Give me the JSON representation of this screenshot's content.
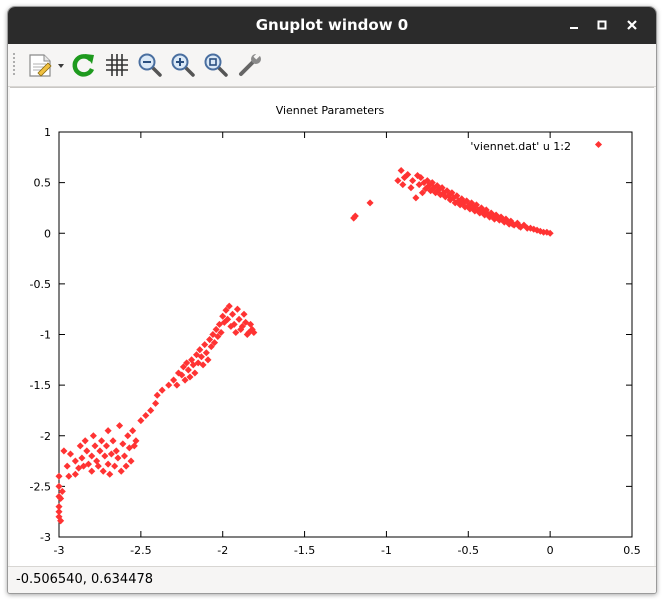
{
  "window": {
    "title": "Gnuplot window 0"
  },
  "toolbar": {
    "items": [
      {
        "name": "copy-to-clipboard",
        "icon": "clipboard-icon"
      },
      {
        "name": "replot",
        "icon": "refresh-icon"
      },
      {
        "name": "grid",
        "icon": "grid-icon"
      },
      {
        "name": "zoom-previous",
        "icon": "zoom-out-icon"
      },
      {
        "name": "zoom-next",
        "icon": "zoom-in-icon"
      },
      {
        "name": "autoscale",
        "icon": "zoom-fit-icon"
      },
      {
        "name": "options",
        "icon": "wrench-icon"
      }
    ]
  },
  "status": {
    "coordinates": "-0.506540,  0.634478"
  },
  "colors": {
    "series": "#ff3333",
    "titlebar": "#2b2b2b"
  },
  "chart_data": {
    "type": "scatter",
    "title": "Viennet Parameters",
    "xlabel": "",
    "ylabel": "",
    "xlim": [
      -3,
      0.5
    ],
    "ylim": [
      -3,
      1
    ],
    "xticks": [
      "-3",
      "-2.5",
      "-2",
      "-1.5",
      "-1",
      "-0.5",
      "0",
      "0.5"
    ],
    "yticks": [
      "1",
      "0.5",
      "0",
      "-0.5",
      "-1",
      "-1.5",
      "-2",
      "-2.5",
      "-3"
    ],
    "grid": false,
    "legend": "top-right",
    "series": [
      {
        "name": "'viennet.dat' u 1:2",
        "marker": "diamond",
        "points": [
          [
            -3.0,
            -2.8
          ],
          [
            -3.0,
            -2.75
          ],
          [
            -3.0,
            -2.7
          ],
          [
            -3.0,
            -2.6
          ],
          [
            -3.0,
            -2.5
          ],
          [
            -3.0,
            -2.4
          ],
          [
            -2.99,
            -2.84
          ],
          [
            -2.99,
            -2.62
          ],
          [
            -2.98,
            -2.55
          ],
          [
            -2.97,
            -2.15
          ],
          [
            -2.95,
            -2.3
          ],
          [
            -2.94,
            -2.4
          ],
          [
            -2.93,
            -2.18
          ],
          [
            -2.9,
            -2.38
          ],
          [
            -2.9,
            -2.25
          ],
          [
            -2.88,
            -2.32
          ],
          [
            -2.87,
            -2.1
          ],
          [
            -2.86,
            -2.22
          ],
          [
            -2.85,
            -2.3
          ],
          [
            -2.84,
            -2.05
          ],
          [
            -2.83,
            -2.15
          ],
          [
            -2.82,
            -2.28
          ],
          [
            -2.8,
            -2.2
          ],
          [
            -2.8,
            -2.35
          ],
          [
            -2.79,
            -2.0
          ],
          [
            -2.78,
            -2.1
          ],
          [
            -2.77,
            -2.25
          ],
          [
            -2.76,
            -2.3
          ],
          [
            -2.75,
            -2.15
          ],
          [
            -2.74,
            -2.05
          ],
          [
            -2.73,
            -2.35
          ],
          [
            -2.72,
            -2.2
          ],
          [
            -2.71,
            -2.1
          ],
          [
            -2.7,
            -2.28
          ],
          [
            -2.7,
            -1.95
          ],
          [
            -2.69,
            -2.38
          ],
          [
            -2.68,
            -2.18
          ],
          [
            -2.67,
            -2.05
          ],
          [
            -2.66,
            -2.3
          ],
          [
            -2.65,
            -2.15
          ],
          [
            -2.64,
            -2.22
          ],
          [
            -2.63,
            -1.9
          ],
          [
            -2.62,
            -2.35
          ],
          [
            -2.61,
            -2.08
          ],
          [
            -2.6,
            -2.2
          ],
          [
            -2.59,
            -2.3
          ],
          [
            -2.58,
            -2.0
          ],
          [
            -2.57,
            -2.12
          ],
          [
            -2.56,
            -2.25
          ],
          [
            -2.55,
            -1.95
          ],
          [
            -2.54,
            -2.1
          ],
          [
            -2.53,
            -2.05
          ],
          [
            -2.5,
            -1.85
          ],
          [
            -2.47,
            -1.8
          ],
          [
            -2.44,
            -1.75
          ],
          [
            -2.41,
            -1.68
          ],
          [
            -2.4,
            -1.6
          ],
          [
            -2.37,
            -1.55
          ],
          [
            -2.33,
            -1.5
          ],
          [
            -2.3,
            -1.45
          ],
          [
            -2.28,
            -1.5
          ],
          [
            -2.27,
            -1.38
          ],
          [
            -2.25,
            -1.4
          ],
          [
            -2.24,
            -1.32
          ],
          [
            -2.23,
            -1.45
          ],
          [
            -2.22,
            -1.28
          ],
          [
            -2.21,
            -1.35
          ],
          [
            -2.2,
            -1.42
          ],
          [
            -2.19,
            -1.25
          ],
          [
            -2.18,
            -1.3
          ],
          [
            -2.17,
            -1.38
          ],
          [
            -2.16,
            -1.2
          ],
          [
            -2.15,
            -1.28
          ],
          [
            -2.14,
            -1.15
          ],
          [
            -2.13,
            -1.22
          ],
          [
            -2.12,
            -1.3
          ],
          [
            -2.11,
            -1.1
          ],
          [
            -2.1,
            -1.18
          ],
          [
            -2.09,
            -1.25
          ],
          [
            -2.08,
            -1.05
          ],
          [
            -2.07,
            -1.12
          ],
          [
            -2.06,
            -1.0
          ],
          [
            -2.05,
            -1.08
          ],
          [
            -2.04,
            -0.95
          ],
          [
            -2.03,
            -1.02
          ],
          [
            -2.02,
            -0.9
          ],
          [
            -2.01,
            -0.98
          ],
          [
            -2.0,
            -0.82
          ],
          [
            -1.99,
            -0.88
          ],
          [
            -1.98,
            -0.76
          ],
          [
            -1.97,
            -0.85
          ],
          [
            -1.96,
            -0.72
          ],
          [
            -1.95,
            -0.92
          ],
          [
            -1.94,
            -0.8
          ],
          [
            -1.93,
            -0.9
          ],
          [
            -1.92,
            -0.98
          ],
          [
            -1.91,
            -0.75
          ],
          [
            -1.9,
            -0.85
          ],
          [
            -1.89,
            -0.95
          ],
          [
            -1.88,
            -0.92
          ],
          [
            -1.87,
            -0.8
          ],
          [
            -1.86,
            -0.88
          ],
          [
            -1.85,
            -1.0
          ],
          [
            -1.84,
            -0.98
          ],
          [
            -1.83,
            -0.9
          ],
          [
            -1.82,
            -0.95
          ],
          [
            -1.81,
            -0.98
          ],
          [
            -1.2,
            0.15
          ],
          [
            -1.19,
            0.17
          ],
          [
            -1.1,
            0.3
          ],
          [
            -0.93,
            0.52
          ],
          [
            -0.91,
            0.62
          ],
          [
            -0.9,
            0.48
          ],
          [
            -0.89,
            0.55
          ],
          [
            -0.87,
            0.58
          ],
          [
            -0.85,
            0.45
          ],
          [
            -0.84,
            0.52
          ],
          [
            -0.82,
            0.35
          ],
          [
            -0.81,
            0.57
          ],
          [
            -0.8,
            0.48
          ],
          [
            -0.79,
            0.55
          ],
          [
            -0.78,
            0.4
          ],
          [
            -0.77,
            0.5
          ],
          [
            -0.76,
            0.44
          ],
          [
            -0.75,
            0.52
          ],
          [
            -0.74,
            0.47
          ],
          [
            -0.73,
            0.42
          ],
          [
            -0.72,
            0.5
          ],
          [
            -0.71,
            0.45
          ],
          [
            -0.7,
            0.4
          ],
          [
            -0.69,
            0.47
          ],
          [
            -0.68,
            0.43
          ],
          [
            -0.67,
            0.38
          ],
          [
            -0.66,
            0.45
          ],
          [
            -0.65,
            0.4
          ],
          [
            -0.64,
            0.36
          ],
          [
            -0.63,
            0.42
          ],
          [
            -0.62,
            0.37
          ],
          [
            -0.61,
            0.33
          ],
          [
            -0.6,
            0.4
          ],
          [
            -0.59,
            0.35
          ],
          [
            -0.58,
            0.3
          ],
          [
            -0.57,
            0.37
          ],
          [
            -0.56,
            0.32
          ],
          [
            -0.55,
            0.28
          ],
          [
            -0.54,
            0.34
          ],
          [
            -0.53,
            0.3
          ],
          [
            -0.52,
            0.26
          ],
          [
            -0.51,
            0.32
          ],
          [
            -0.5,
            0.27
          ],
          [
            -0.49,
            0.24
          ],
          [
            -0.48,
            0.3
          ],
          [
            -0.47,
            0.25
          ],
          [
            -0.46,
            0.22
          ],
          [
            -0.45,
            0.28
          ],
          [
            -0.44,
            0.23
          ],
          [
            -0.43,
            0.2
          ],
          [
            -0.42,
            0.25
          ],
          [
            -0.41,
            0.21
          ],
          [
            -0.4,
            0.18
          ],
          [
            -0.39,
            0.23
          ],
          [
            -0.38,
            0.19
          ],
          [
            -0.37,
            0.16
          ],
          [
            -0.36,
            0.2
          ],
          [
            -0.35,
            0.17
          ],
          [
            -0.34,
            0.14
          ],
          [
            -0.33,
            0.18
          ],
          [
            -0.32,
            0.15
          ],
          [
            -0.31,
            0.13
          ],
          [
            -0.3,
            0.16
          ],
          [
            -0.29,
            0.13
          ],
          [
            -0.28,
            0.11
          ],
          [
            -0.27,
            0.14
          ],
          [
            -0.26,
            0.11
          ],
          [
            -0.25,
            0.09
          ],
          [
            -0.24,
            0.12
          ],
          [
            -0.23,
            0.09
          ],
          [
            -0.22,
            0.08
          ],
          [
            -0.2,
            0.1
          ],
          [
            -0.19,
            0.07
          ],
          [
            -0.18,
            0.06
          ],
          [
            -0.16,
            0.08
          ],
          [
            -0.14,
            0.05
          ],
          [
            -0.12,
            0.05
          ],
          [
            -0.1,
            0.04
          ],
          [
            -0.08,
            0.03
          ],
          [
            -0.06,
            0.02
          ],
          [
            -0.04,
            0.01
          ],
          [
            -0.02,
            0.01
          ],
          [
            0.0,
            0.0
          ]
        ]
      }
    ]
  }
}
